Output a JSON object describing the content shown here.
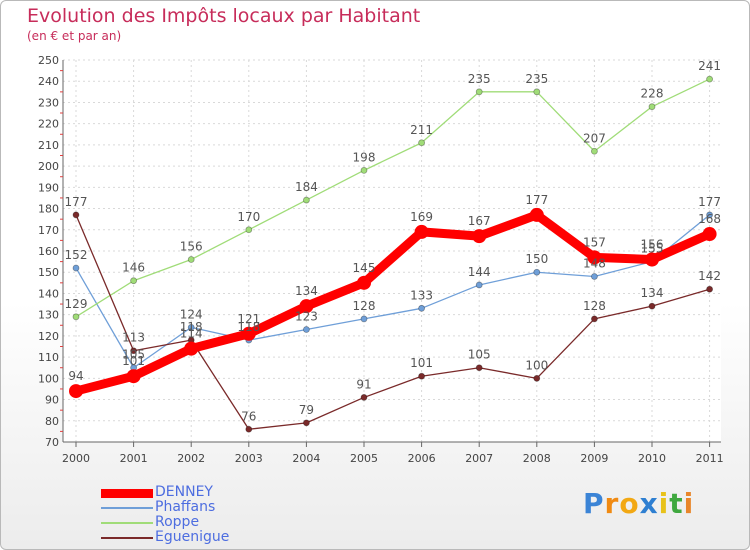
{
  "chart_data": {
    "type": "line",
    "title": "Evolution des Impôts locaux par Habitant",
    "subtitle": "(en € et par an)",
    "categories": [
      "2000",
      "2001",
      "2002",
      "2003",
      "2004",
      "2005",
      "2006",
      "2007",
      "2008",
      "2009",
      "2010",
      "2011"
    ],
    "ylim": [
      70,
      250
    ],
    "yticks": [
      70,
      80,
      90,
      100,
      110,
      120,
      130,
      140,
      150,
      160,
      170,
      180,
      190,
      200,
      210,
      220,
      230,
      240,
      250
    ],
    "grid": true,
    "legend_position": "bottom-left",
    "series": [
      {
        "name": "DENNEY",
        "color": "#ff0000",
        "emphasis": true,
        "values": [
          94,
          101,
          114,
          121,
          134,
          145,
          169,
          167,
          177,
          157,
          156,
          168
        ]
      },
      {
        "name": "Phaffans",
        "color": "#6f9fd8",
        "emphasis": false,
        "values": [
          152,
          105,
          124,
          118,
          123,
          128,
          133,
          144,
          150,
          148,
          155,
          177
        ]
      },
      {
        "name": "Roppe",
        "color": "#a0dc78",
        "emphasis": false,
        "values": [
          129,
          146,
          156,
          170,
          184,
          198,
          211,
          235,
          235,
          207,
          228,
          241
        ]
      },
      {
        "name": "Eguenigue",
        "color": "#7a2a2a",
        "emphasis": false,
        "values": [
          177,
          113,
          118,
          76,
          79,
          91,
          101,
          105,
          100,
          128,
          134,
          142
        ]
      }
    ]
  },
  "brand": {
    "letters": [
      "P",
      "r",
      "o",
      "x",
      "i",
      "t",
      "i"
    ],
    "colors": [
      "#3b84d6",
      "#f08a12",
      "#f2a813",
      "#2e7fd1",
      "#e8c21a",
      "#3fa83f",
      "#e8862a"
    ]
  }
}
